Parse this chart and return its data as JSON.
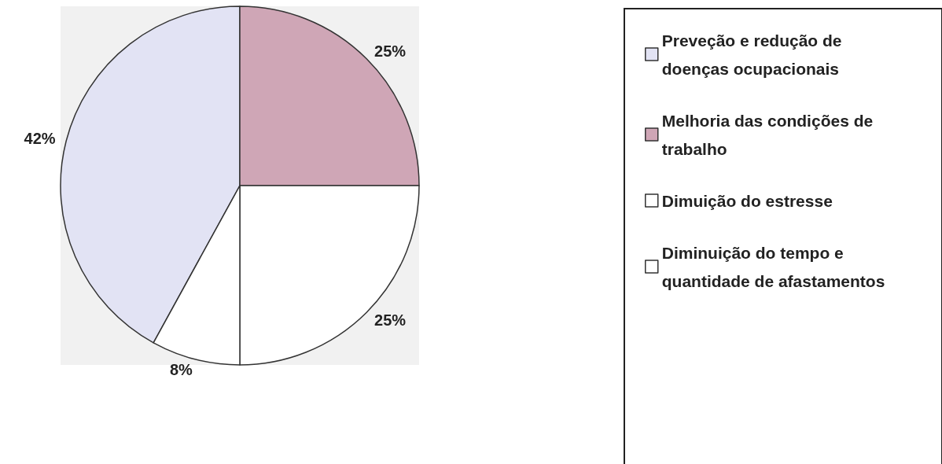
{
  "chart_data": {
    "type": "pie",
    "categories": [
      "Preveção e redução de doenças ocupacionais",
      "Melhoria das condições de trabalho",
      "Dimuição do estresse",
      "Diminuição do tempo e quantidade de afastamentos"
    ],
    "values": [
      42,
      25,
      25,
      8
    ],
    "value_labels": [
      "42%",
      "25%",
      "25%",
      "8%"
    ],
    "colors": [
      "#e2e3f4",
      "#cfa6b6",
      "#ffffff",
      "#ffffff"
    ],
    "legend": "right"
  }
}
